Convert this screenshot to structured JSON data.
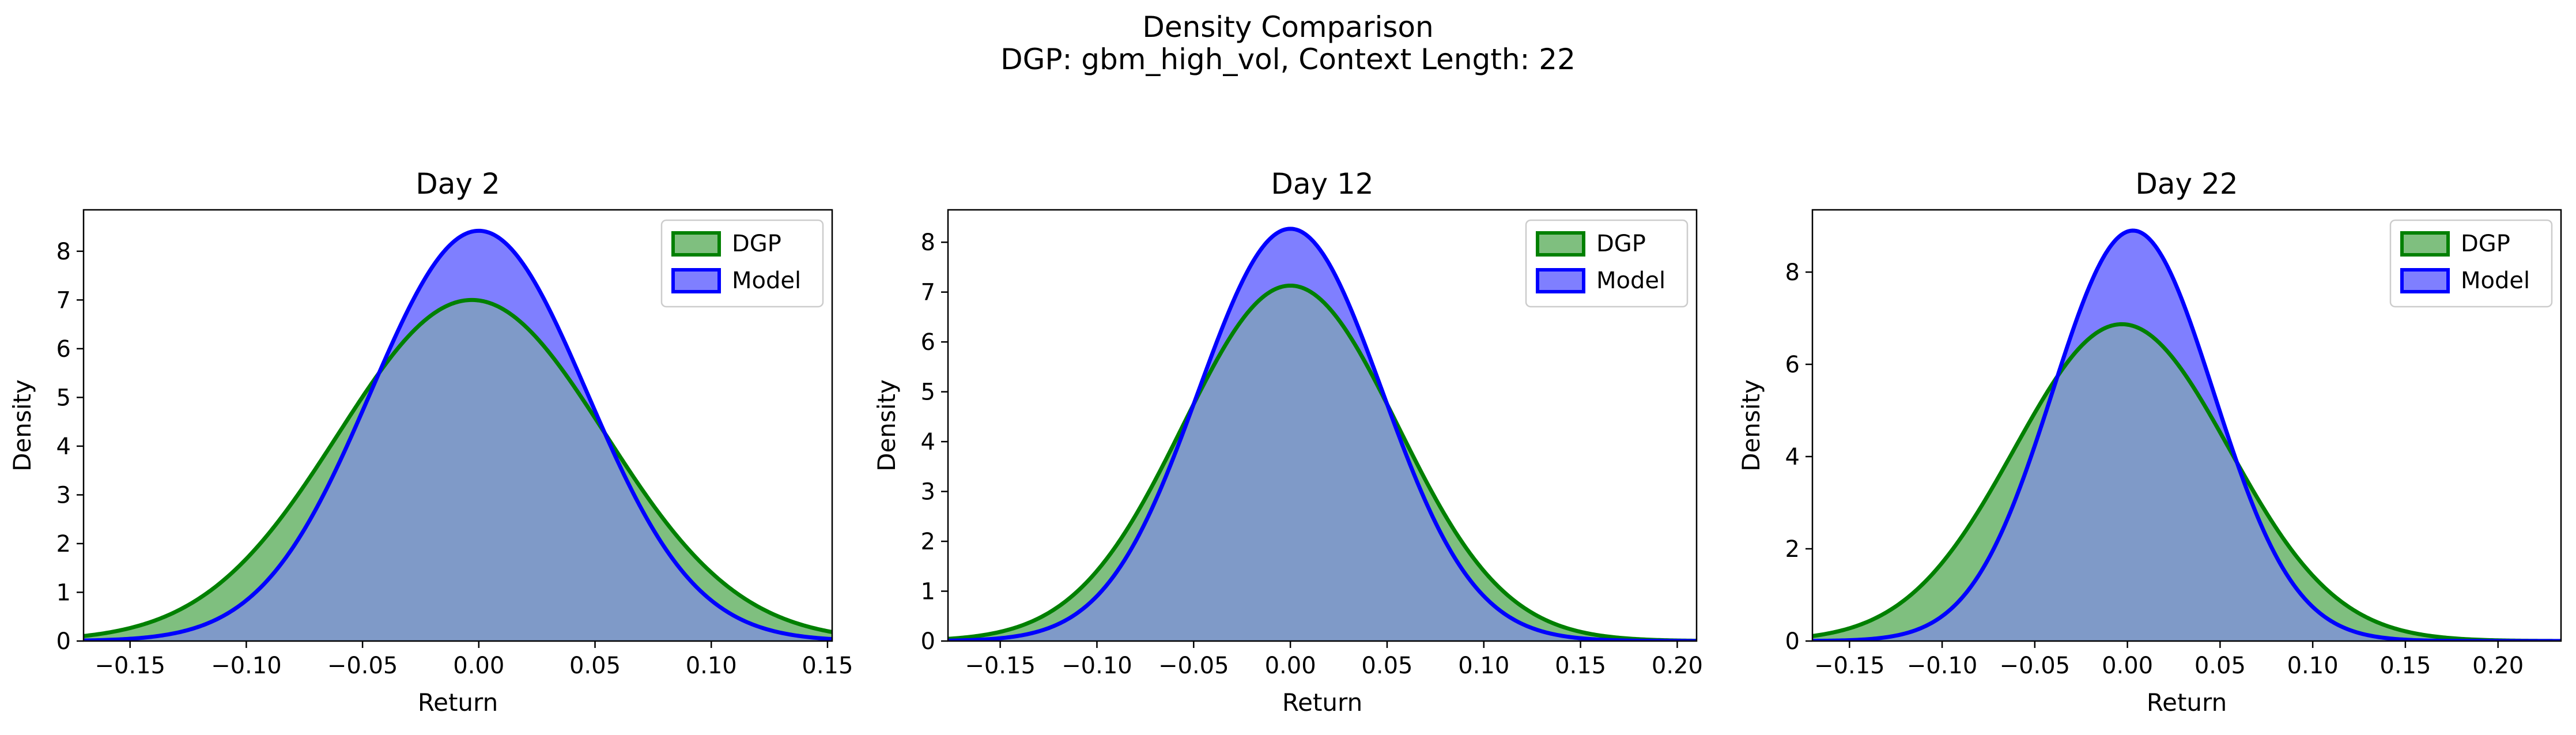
{
  "figure": {
    "title": "Density Comparison",
    "subtitle": "DGP: gbm_high_vol, Context Length: 22"
  },
  "colors": {
    "dgp_line": "#008000",
    "dgp_fill": "#7fbf7f",
    "model_line": "#0000ff",
    "model_fill": "#7f7fff",
    "overlap_fill": "#7f9ac8"
  },
  "chart_data": [
    {
      "type": "area",
      "title": "Day 2",
      "xlabel": "Return",
      "ylabel": "Density",
      "xlim": [
        -0.17,
        0.152
      ],
      "ylim": [
        0,
        8.85
      ],
      "xticks": [
        -0.15,
        -0.1,
        -0.05,
        0.0,
        0.05,
        0.1,
        0.15
      ],
      "xtick_labels": [
        "−0.15",
        "−0.10",
        "−0.05",
        "0.00",
        "0.05",
        "0.10",
        "0.15"
      ],
      "yticks": [
        0,
        1,
        2,
        3,
        4,
        5,
        6,
        7,
        8
      ],
      "ytick_labels": [
        "0",
        "1",
        "2",
        "3",
        "4",
        "5",
        "6",
        "7",
        "8"
      ],
      "legend": {
        "placement": "top-right",
        "entries": [
          "DGP",
          "Model"
        ]
      },
      "series": [
        {
          "name": "DGP",
          "kind": "gaussian",
          "peak": 7.0,
          "mean": -0.003,
          "sigma": 0.0575
        },
        {
          "name": "Model",
          "kind": "gaussian",
          "peak": 8.42,
          "mean": 0.0,
          "sigma": 0.0465
        }
      ]
    },
    {
      "type": "area",
      "title": "Day 12",
      "xlabel": "Return",
      "ylabel": "Density",
      "xlim": [
        -0.177,
        0.21
      ],
      "ylim": [
        0,
        8.65
      ],
      "xticks": [
        -0.15,
        -0.1,
        -0.05,
        0.0,
        0.05,
        0.1,
        0.15,
        0.2
      ],
      "xtick_labels": [
        "−0.15",
        "−0.10",
        "−0.05",
        "0.00",
        "0.05",
        "0.10",
        "0.15",
        "0.20"
      ],
      "yticks": [
        0,
        1,
        2,
        3,
        4,
        5,
        6,
        7,
        8
      ],
      "ytick_labels": [
        "0",
        "1",
        "2",
        "3",
        "4",
        "5",
        "6",
        "7",
        "8"
      ],
      "legend": {
        "placement": "top-right",
        "entries": [
          "DGP",
          "Model"
        ]
      },
      "series": [
        {
          "name": "DGP",
          "kind": "gaussian",
          "peak": 7.13,
          "mean": 0.0,
          "sigma": 0.0555
        },
        {
          "name": "Model",
          "kind": "gaussian",
          "peak": 8.27,
          "mean": 0.0,
          "sigma": 0.0475
        }
      ]
    },
    {
      "type": "area",
      "title": "Day 22",
      "xlabel": "Return",
      "ylabel": "Density",
      "xlim": [
        -0.17,
        0.234
      ],
      "ylim": [
        0,
        9.35
      ],
      "xticks": [
        -0.15,
        -0.1,
        -0.05,
        0.0,
        0.05,
        0.1,
        0.15,
        0.2
      ],
      "xtick_labels": [
        "−0.15",
        "−0.10",
        "−0.05",
        "0.00",
        "0.05",
        "0.10",
        "0.15",
        "0.20"
      ],
      "yticks": [
        0,
        2,
        4,
        6,
        8
      ],
      "ytick_labels": [
        "0",
        "2",
        "4",
        "6",
        "8"
      ],
      "legend": {
        "placement": "top-right",
        "entries": [
          "DGP",
          "Model"
        ]
      },
      "series": [
        {
          "name": "DGP",
          "kind": "gaussian",
          "peak": 6.87,
          "mean": -0.003,
          "sigma": 0.058
        },
        {
          "name": "Model",
          "kind": "gaussian",
          "peak": 8.9,
          "mean": 0.003,
          "sigma": 0.0435
        }
      ]
    }
  ]
}
